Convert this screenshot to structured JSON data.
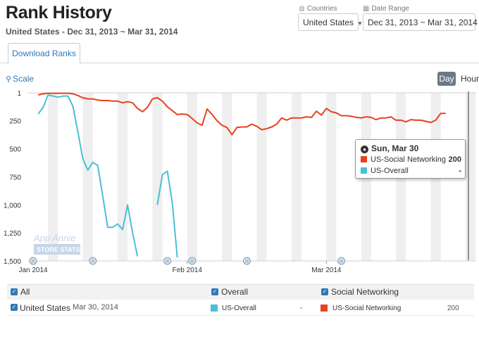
{
  "header": {
    "title": "Rank History",
    "subtitle": "United States - Dec 31, 2013 ~ Mar 31, 2014"
  },
  "filters": {
    "countries_label": "Countries",
    "countries_value": "United States",
    "date_range_label": "Date Range",
    "date_range_value": "Dec 31, 2013 ~ Mar 31, 2014"
  },
  "tabs": [
    {
      "label": "Download Ranks",
      "active": true
    }
  ],
  "controls": {
    "scale_label": "Scale",
    "granularity": [
      {
        "label": "Day",
        "active": true
      },
      {
        "label": "Hour",
        "active": false
      }
    ]
  },
  "watermark": {
    "line1": "App Annie",
    "line2": "STORE STATS"
  },
  "chart_data": {
    "type": "line",
    "y_reversed": true,
    "ylim": [
      1,
      1500
    ],
    "y_ticks": [
      "1",
      "250",
      "500",
      "750",
      "1,000",
      "1,250",
      "1,500"
    ],
    "x_ticks": [
      "Jan 2014",
      "Feb 2014",
      "Mar 2014"
    ],
    "series": [
      {
        "name": "US-Social Networking",
        "color": "#e8411e",
        "points": [
          [
            "2014-01-02",
            20
          ],
          [
            "2014-01-03",
            10
          ],
          [
            "2014-01-04",
            5
          ],
          [
            "2014-01-05",
            5
          ],
          [
            "2014-01-06",
            5
          ],
          [
            "2014-01-07",
            5
          ],
          [
            "2014-01-08",
            5
          ],
          [
            "2014-01-09",
            10
          ],
          [
            "2014-01-10",
            25
          ],
          [
            "2014-01-11",
            45
          ],
          [
            "2014-01-12",
            55
          ],
          [
            "2014-01-13",
            55
          ],
          [
            "2014-01-14",
            65
          ],
          [
            "2014-01-15",
            70
          ],
          [
            "2014-01-16",
            70
          ],
          [
            "2014-01-17",
            75
          ],
          [
            "2014-01-18",
            75
          ],
          [
            "2014-01-19",
            90
          ],
          [
            "2014-01-20",
            80
          ],
          [
            "2014-01-21",
            90
          ],
          [
            "2014-01-22",
            140
          ],
          [
            "2014-01-23",
            170
          ],
          [
            "2014-01-24",
            130
          ],
          [
            "2014-01-25",
            55
          ],
          [
            "2014-01-26",
            45
          ],
          [
            "2014-01-27",
            75
          ],
          [
            "2014-01-28",
            125
          ],
          [
            "2014-01-29",
            160
          ],
          [
            "2014-01-30",
            195
          ],
          [
            "2014-01-31",
            190
          ],
          [
            "2014-02-01",
            195
          ],
          [
            "2014-02-02",
            230
          ],
          [
            "2014-02-03",
            270
          ],
          [
            "2014-02-04",
            290
          ],
          [
            "2014-02-05",
            145
          ],
          [
            "2014-02-06",
            195
          ],
          [
            "2014-02-07",
            250
          ],
          [
            "2014-02-08",
            290
          ],
          [
            "2014-02-09",
            310
          ],
          [
            "2014-02-10",
            375
          ],
          [
            "2014-02-11",
            310
          ],
          [
            "2014-02-12",
            305
          ],
          [
            "2014-02-13",
            305
          ],
          [
            "2014-02-14",
            280
          ],
          [
            "2014-02-15",
            300
          ],
          [
            "2014-02-16",
            330
          ],
          [
            "2014-02-17",
            320
          ],
          [
            "2014-02-18",
            305
          ],
          [
            "2014-02-19",
            280
          ],
          [
            "2014-02-20",
            225
          ],
          [
            "2014-02-21",
            245
          ],
          [
            "2014-02-22",
            225
          ],
          [
            "2014-02-23",
            225
          ],
          [
            "2014-02-24",
            225
          ],
          [
            "2014-02-25",
            215
          ],
          [
            "2014-02-26",
            220
          ],
          [
            "2014-02-27",
            165
          ],
          [
            "2014-02-28",
            200
          ],
          [
            "2014-03-01",
            140
          ],
          [
            "2014-03-02",
            170
          ],
          [
            "2014-03-03",
            180
          ],
          [
            "2014-03-04",
            205
          ],
          [
            "2014-03-05",
            205
          ],
          [
            "2014-03-06",
            210
          ],
          [
            "2014-03-07",
            220
          ],
          [
            "2014-03-08",
            225
          ],
          [
            "2014-03-09",
            215
          ],
          [
            "2014-03-10",
            220
          ],
          [
            "2014-03-11",
            240
          ],
          [
            "2014-03-12",
            225
          ],
          [
            "2014-03-13",
            225
          ],
          [
            "2014-03-14",
            215
          ],
          [
            "2014-03-15",
            245
          ],
          [
            "2014-03-16",
            245
          ],
          [
            "2014-03-17",
            260
          ],
          [
            "2014-03-18",
            240
          ],
          [
            "2014-03-19",
            245
          ],
          [
            "2014-03-20",
            245
          ],
          [
            "2014-03-21",
            255
          ],
          [
            "2014-03-22",
            265
          ],
          [
            "2014-03-23",
            245
          ],
          [
            "2014-03-24",
            185
          ],
          [
            "2014-03-25",
            185
          ]
        ]
      },
      {
        "name": "US-Overall",
        "color": "#49c0d6",
        "points": [
          [
            "2014-01-02",
            190
          ],
          [
            "2014-01-03",
            130
          ],
          [
            "2014-01-04",
            20
          ],
          [
            "2014-01-05",
            30
          ],
          [
            "2014-01-06",
            40
          ],
          [
            "2014-01-07",
            30
          ],
          [
            "2014-01-08",
            30
          ],
          [
            "2014-01-09",
            120
          ],
          [
            "2014-01-10",
            350
          ],
          [
            "2014-01-11",
            590
          ],
          [
            "2014-01-12",
            690
          ],
          [
            "2014-01-13",
            620
          ],
          [
            "2014-01-14",
            650
          ],
          [
            "2014-01-15",
            920
          ],
          [
            "2014-01-16",
            1200
          ],
          [
            "2014-01-17",
            1200
          ],
          [
            "2014-01-18",
            1170
          ],
          [
            "2014-01-19",
            1220
          ],
          [
            "2014-01-20",
            1000
          ],
          [
            "2014-01-21",
            1250
          ],
          [
            "2014-01-22",
            1460
          ],
          null,
          [
            "2014-01-26",
            1000
          ],
          [
            "2014-01-27",
            730
          ],
          [
            "2014-01-28",
            700
          ],
          [
            "2014-01-29",
            980
          ],
          [
            "2014-01-30",
            1470
          ]
        ]
      }
    ],
    "tooltip": {
      "date": "Sun, Mar 30",
      "rows": [
        {
          "series": "US-Social Networking",
          "value": "200"
        },
        {
          "series": "US-Overall",
          "value": "-"
        }
      ]
    }
  },
  "legend": {
    "all_label": "All",
    "overall_label": "Overall",
    "social_label": "Social Networking",
    "country": "United States",
    "date": "Mar 30, 2014",
    "series1_label": "US-Overall",
    "series1_value": "-",
    "series2_label": "US-Social Networking",
    "series2_value": "200"
  }
}
